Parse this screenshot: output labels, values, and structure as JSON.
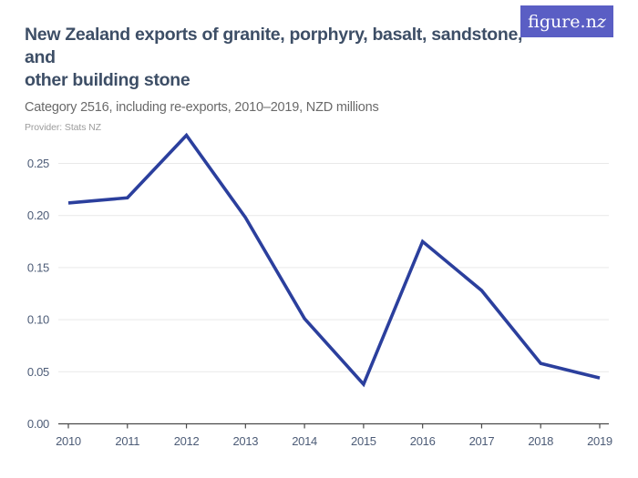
{
  "header": {
    "title_lines": [
      "New Zealand exports of granite, porphyry, basalt, sandstone, and",
      "other building stone"
    ],
    "subtitle": "Category 2516, including re-exports, 2010–2019, NZD millions",
    "provider": "Provider: Stats NZ",
    "logo": {
      "text_main": "figure.n",
      "text_z": "z"
    }
  },
  "colors": {
    "background": "#ffffff",
    "title-text": "#3d4e66",
    "subtitle-text": "#6a6a6a",
    "provider-text": "#9c9c9c",
    "tick-text": "#4d5c77",
    "logo-bg": "#5a5ec4",
    "line": "#2b3f9d",
    "grid": "#e9e9e9",
    "axis": "#4a4a4a"
  },
  "chart_data": {
    "type": "line",
    "title": "New Zealand exports of granite, porphyry, basalt, sandstone, and other building stone",
    "subtitle": "Category 2516, including re-exports, 2010–2019, NZD millions",
    "provider": "Provider: Stats NZ",
    "units": "NZD millions",
    "x": [
      2010,
      2011,
      2012,
      2013,
      2014,
      2015,
      2016,
      2017,
      2018,
      2019
    ],
    "values": [
      0.212,
      0.217,
      0.277,
      0.198,
      0.101,
      0.038,
      0.175,
      0.128,
      0.058,
      0.044
    ],
    "xlabel": "",
    "ylabel": "",
    "ylim": [
      0,
      0.29
    ],
    "y_ticks": [
      0,
      0.05,
      0.1,
      0.15,
      0.2,
      0.25
    ],
    "y_tick_format": "0.00",
    "grid": "horizontal",
    "legend": "none",
    "line_color": "#2b3f9d"
  }
}
